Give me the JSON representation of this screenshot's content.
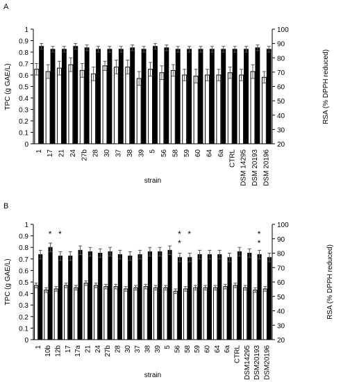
{
  "chart_data": [
    {
      "panel_label": "A",
      "type": "bar",
      "categories": [
        "1",
        "17",
        "21",
        "24",
        "27b",
        "28",
        "30",
        "37",
        "38",
        "39",
        "5",
        "56",
        "58",
        "59",
        "60",
        "64",
        "6a",
        "CTRL",
        "DSM 14295",
        "DSM 20193",
        "DSM 20196"
      ],
      "series": [
        {
          "axis": "left",
          "color": "#ffffff",
          "values": [
            0.65,
            0.63,
            0.66,
            0.69,
            0.64,
            0.61,
            0.68,
            0.67,
            0.67,
            0.57,
            0.65,
            0.62,
            0.64,
            0.6,
            0.59,
            0.6,
            0.6,
            0.62,
            0.6,
            0.63,
            0.58
          ],
          "errors": [
            0.05,
            0.06,
            0.06,
            0.06,
            0.06,
            0.06,
            0.04,
            0.06,
            0.06,
            0.06,
            0.06,
            0.06,
            0.05,
            0.05,
            0.06,
            0.05,
            0.05,
            0.05,
            0.05,
            0.06,
            0.05
          ]
        },
        {
          "axis": "right",
          "color": "#000000",
          "values": [
            88,
            86,
            86,
            88,
            87,
            86,
            86,
            86,
            87,
            86,
            88,
            87,
            86,
            86,
            86,
            86,
            86,
            86,
            86,
            87,
            86
          ],
          "errors": [
            2,
            2,
            2,
            2,
            2,
            2,
            2,
            2,
            2,
            2,
            2,
            2,
            2,
            2,
            2,
            2,
            2,
            2,
            2,
            2,
            2
          ]
        }
      ],
      "annotations": [],
      "xlabel": "strain",
      "ylabel_left": "TPC (g GAE/L)",
      "ylabel_right": "RSA (% DPPH reduced)",
      "ylim_left": [
        0,
        1
      ],
      "ylim_right": [
        20,
        100
      ],
      "yticks_left": [
        "0",
        "0.1",
        "0.2",
        "0.3",
        "0.4",
        "0.5",
        "0.6",
        "0.7",
        "0.8",
        "0.9",
        "1"
      ],
      "yticks_right": [
        "20",
        "30",
        "40",
        "50",
        "60",
        "70",
        "80",
        "90",
        "100"
      ],
      "grid": false
    },
    {
      "panel_label": "B",
      "type": "bar",
      "categories": [
        "1",
        "10b",
        "12b",
        "17",
        "17a",
        "21",
        "24",
        "27b",
        "28",
        "30",
        "37",
        "38",
        "39",
        "5",
        "56",
        "58",
        "59",
        "60",
        "64",
        "6a",
        "CTRL",
        "DSM14295",
        "DSM20193",
        "DSM20196"
      ],
      "series": [
        {
          "axis": "left",
          "color": "#ffffff",
          "values": [
            0.47,
            0.43,
            0.44,
            0.47,
            0.45,
            0.49,
            0.47,
            0.46,
            0.46,
            0.44,
            0.45,
            0.46,
            0.45,
            0.45,
            0.42,
            0.44,
            0.45,
            0.45,
            0.45,
            0.46,
            0.47,
            0.45,
            0.43,
            0.44
          ],
          "errors": [
            0.02,
            0.02,
            0.02,
            0.02,
            0.02,
            0.02,
            0.02,
            0.02,
            0.02,
            0.02,
            0.02,
            0.02,
            0.02,
            0.02,
            0.02,
            0.02,
            0.02,
            0.02,
            0.02,
            0.02,
            0.02,
            0.02,
            0.02,
            0.02
          ]
        },
        {
          "axis": "right",
          "color": "#000000",
          "values": [
            79,
            84,
            78,
            78,
            82,
            81,
            80,
            81,
            79,
            78,
            79,
            81,
            81,
            82,
            77,
            77,
            79,
            79,
            79,
            77,
            81,
            80,
            79,
            77
          ],
          "errors": [
            3,
            3,
            3,
            3,
            3,
            3,
            3,
            3,
            3,
            3,
            3,
            3,
            3,
            3,
            3,
            3,
            3,
            3,
            3,
            3,
            3,
            3,
            3,
            3
          ]
        }
      ],
      "annotations": [
        {
          "category": "10b",
          "text": "*"
        },
        {
          "category": "12b",
          "text": "*"
        },
        {
          "category": "56",
          "text": "*"
        },
        {
          "category": "56",
          "text": "*"
        },
        {
          "category": "58",
          "text": "*"
        },
        {
          "category": "DSM20193",
          "text": "*"
        },
        {
          "category": "DSM20193",
          "text": "*"
        }
      ],
      "xlabel": "strain",
      "ylabel_left": "TPC (g GAE/L)",
      "ylabel_right": "RSA (% DPPH reduced)",
      "ylim_left": [
        0,
        1
      ],
      "ylim_right": [
        20,
        100
      ],
      "yticks_left": [
        "0",
        "0.1",
        "0.2",
        "0.3",
        "0.4",
        "0.5",
        "0.6",
        "0.7",
        "0.8",
        "0.9",
        "1"
      ],
      "yticks_right": [
        "20",
        "30",
        "40",
        "50",
        "60",
        "70",
        "80",
        "90",
        "100"
      ],
      "grid": false
    }
  ]
}
